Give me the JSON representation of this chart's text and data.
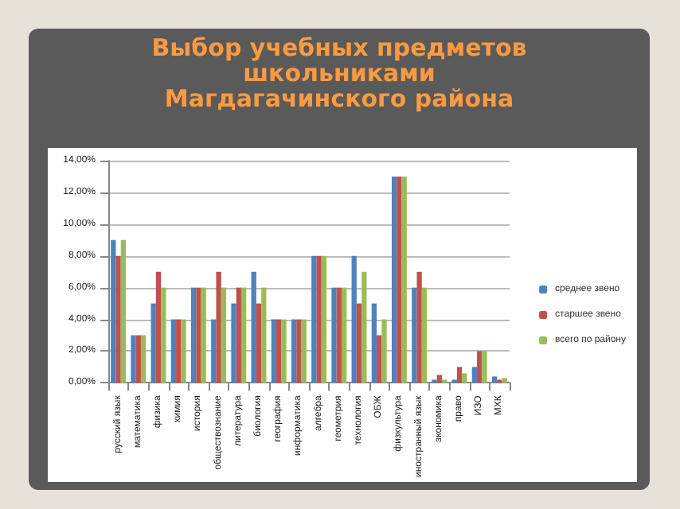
{
  "chart_data": {
    "type": "bar",
    "title": "Выбор учебных предметов школьниками Магдагачинского района",
    "categories": [
      "русский язык",
      "математика",
      "физика",
      "химия",
      "история",
      "обществознание",
      "литература",
      "биология",
      "география",
      "информатика",
      "алгебра",
      "геометрия",
      "технология",
      "ОБЖ",
      "физкультура",
      "иностранный язык",
      "экономика",
      "право",
      "ИЗО",
      "МХК"
    ],
    "series": [
      {
        "name": "среднее звено",
        "color": "#4f81bd",
        "values": [
          9,
          3,
          5,
          4,
          6,
          4,
          5,
          7,
          4,
          4,
          8,
          6,
          8,
          5,
          13,
          6,
          0.2,
          0.2,
          1,
          0.4
        ]
      },
      {
        "name": "старшее звено",
        "color": "#c0504d",
        "values": [
          8,
          3,
          7,
          4,
          6,
          7,
          6,
          5,
          4,
          4,
          8,
          6,
          5,
          3,
          13,
          7,
          0.5,
          1,
          2,
          0.2
        ]
      },
      {
        "name": "всего по району",
        "color": "#9bbb59",
        "values": [
          9,
          3,
          6,
          4,
          6,
          6,
          6,
          6,
          4,
          4,
          8,
          6,
          7,
          4,
          13,
          6,
          0.2,
          0.6,
          2,
          0.3
        ]
      }
    ],
    "ylim": [
      0,
      14
    ],
    "yticks": [
      {
        "value": 0,
        "label": "0,00%"
      },
      {
        "value": 2,
        "label": "2,00%"
      },
      {
        "value": 4,
        "label": "4,00%"
      },
      {
        "value": 6,
        "label": "6,00%"
      },
      {
        "value": 8,
        "label": "8,00%"
      },
      {
        "value": 10,
        "label": "10,00%"
      },
      {
        "value": 12,
        "label": "12,00%"
      },
      {
        "value": 14,
        "label": "14,00%"
      }
    ],
    "grid": "y",
    "legend": "right"
  }
}
